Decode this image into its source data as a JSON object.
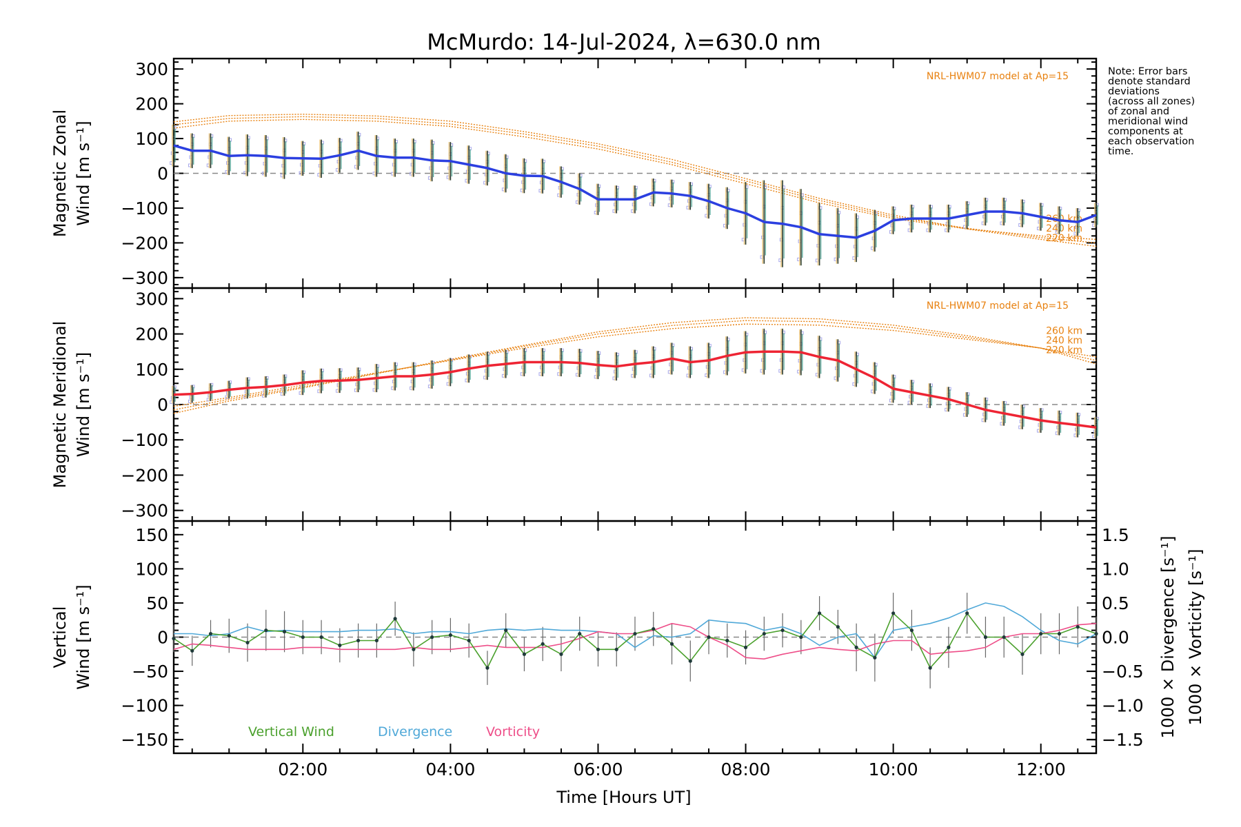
{
  "title": "McMurdo: 14-Jul-2024, λ=630.0 nm",
  "note": [
    "Note: Error bars",
    "denote standard",
    "deviations",
    "(across all zones)",
    "of zonal and",
    "meridional wind",
    "components at",
    "each observation",
    "time."
  ],
  "xlabel": "Time [Hours UT]",
  "xticks": [
    "02:00",
    "04:00",
    "06:00",
    "08:00",
    "10:00",
    "12:00"
  ],
  "colors": {
    "zonal": "#2b3fe0",
    "meridional": "#ee2433",
    "model": "#e8810f",
    "vertical": "#4aa02c",
    "divergence": "#4fa8d8",
    "vorticity": "#ee4d88",
    "zero_line": "#888888",
    "scatter": "#a8a8e8"
  },
  "chart_data": [
    {
      "type": "line",
      "name": "panel-zonal",
      "ylabel_lines": [
        "Magnetic Zonal",
        "Wind [m s⁻¹]"
      ],
      "yticks": [
        "300",
        "200",
        "100",
        "0",
        "−100",
        "−200",
        "−300"
      ],
      "ylim": [
        -330,
        330
      ],
      "xlim": [
        0.25,
        12.75
      ],
      "model_label": "NRL-HWM07 model at Ap=15",
      "model_alt_labels": [
        "260 km",
        "240 km",
        "220 km"
      ],
      "series": [
        {
          "name": "zonal",
          "x": [
            0.25,
            0.5,
            0.75,
            1.0,
            1.25,
            1.5,
            1.75,
            2.0,
            2.25,
            2.5,
            2.75,
            3.0,
            3.25,
            3.5,
            3.75,
            4.0,
            4.25,
            4.5,
            4.75,
            5.0,
            5.25,
            5.5,
            5.75,
            6.0,
            6.25,
            6.5,
            6.75,
            7.0,
            7.25,
            7.5,
            7.75,
            8.0,
            8.25,
            8.5,
            8.75,
            9.0,
            9.25,
            9.5,
            9.75,
            10.0,
            10.25,
            10.5,
            10.75,
            11.0,
            11.25,
            11.5,
            11.75,
            12.0,
            12.25,
            12.5,
            12.75
          ],
          "y": [
            80,
            65,
            65,
            50,
            52,
            50,
            44,
            43,
            42,
            52,
            65,
            50,
            45,
            45,
            37,
            35,
            25,
            15,
            0,
            -7,
            -8,
            -25,
            -45,
            -75,
            -75,
            -75,
            -55,
            -58,
            -65,
            -80,
            -100,
            -115,
            -140,
            -145,
            -155,
            -175,
            -180,
            -185,
            -165,
            -135,
            -130,
            -130,
            -130,
            -120,
            -110,
            -110,
            -115,
            -125,
            -135,
            -140,
            -120
          ],
          "err": [
            60,
            50,
            50,
            55,
            60,
            60,
            60,
            50,
            55,
            50,
            55,
            60,
            55,
            55,
            60,
            55,
            55,
            50,
            55,
            50,
            50,
            45,
            45,
            45,
            40,
            40,
            40,
            40,
            40,
            50,
            60,
            90,
            120,
            125,
            110,
            90,
            80,
            70,
            60,
            40,
            40,
            40,
            40,
            40,
            40,
            40,
            40,
            40,
            40,
            40,
            35
          ]
        }
      ],
      "model": [
        {
          "name": "260 km",
          "x": [
            0.25,
            1,
            2,
            3,
            4,
            5,
            6,
            7,
            8,
            9,
            10,
            11,
            12,
            12.75
          ],
          "y": [
            130,
            150,
            155,
            150,
            135,
            105,
            70,
            25,
            -30,
            -85,
            -130,
            -160,
            -180,
            -190
          ]
        },
        {
          "name": "240 km",
          "x": [
            0.25,
            1,
            2,
            3,
            4,
            5,
            6,
            7,
            8,
            9,
            10,
            11,
            12,
            12.75
          ],
          "y": [
            140,
            158,
            163,
            158,
            142,
            113,
            78,
            32,
            -22,
            -78,
            -125,
            -158,
            -185,
            -200
          ]
        },
        {
          "name": "220 km",
          "x": [
            0.25,
            1,
            2,
            3,
            4,
            5,
            6,
            7,
            8,
            9,
            10,
            11,
            12,
            12.75
          ],
          "y": [
            148,
            166,
            170,
            165,
            150,
            120,
            85,
            40,
            -15,
            -72,
            -120,
            -160,
            -190,
            -210
          ]
        }
      ]
    },
    {
      "type": "line",
      "name": "panel-meridional",
      "ylabel_lines": [
        "Magnetic Meridional",
        "Wind [m s⁻¹]"
      ],
      "yticks": [
        "300",
        "200",
        "100",
        "0",
        "−100",
        "−200",
        "−300"
      ],
      "ylim": [
        -330,
        330
      ],
      "xlim": [
        0.25,
        12.75
      ],
      "model_label": "NRL-HWM07 model at Ap=15",
      "model_alt_labels": [
        "260 km",
        "240 km",
        "220 km"
      ],
      "series": [
        {
          "name": "meridional",
          "x": [
            0.25,
            0.5,
            0.75,
            1.0,
            1.25,
            1.5,
            1.75,
            2.0,
            2.25,
            2.5,
            2.75,
            3.0,
            3.25,
            3.5,
            3.75,
            4.0,
            4.25,
            4.5,
            4.75,
            5.0,
            5.25,
            5.5,
            5.75,
            6.0,
            6.25,
            6.5,
            6.75,
            7.0,
            7.25,
            7.5,
            7.75,
            8.0,
            8.25,
            8.5,
            8.75,
            9.0,
            9.25,
            9.5,
            9.75,
            10.0,
            10.25,
            10.5,
            10.75,
            11.0,
            11.25,
            11.5,
            11.75,
            12.0,
            12.25,
            12.5,
            12.75
          ],
          "y": [
            28,
            30,
            35,
            42,
            47,
            50,
            55,
            62,
            67,
            68,
            70,
            75,
            80,
            80,
            85,
            92,
            102,
            110,
            115,
            120,
            120,
            120,
            118,
            112,
            108,
            115,
            120,
            130,
            120,
            125,
            138,
            148,
            150,
            150,
            148,
            135,
            125,
            100,
            75,
            45,
            35,
            25,
            15,
            0,
            -15,
            -25,
            -35,
            -45,
            -52,
            -58,
            -65
          ],
          "err": [
            25,
            25,
            25,
            25,
            30,
            30,
            30,
            35,
            35,
            35,
            35,
            40,
            40,
            40,
            40,
            40,
            40,
            40,
            40,
            40,
            40,
            40,
            40,
            40,
            40,
            40,
            45,
            45,
            45,
            50,
            55,
            60,
            65,
            65,
            65,
            60,
            60,
            50,
            45,
            40,
            35,
            35,
            35,
            35,
            35,
            35,
            35,
            35,
            35,
            35,
            30
          ]
        }
      ],
      "model": [
        {
          "name": "260 km",
          "x": [
            0.25,
            1,
            2,
            3,
            4,
            5,
            6,
            7,
            8,
            9,
            10,
            11,
            12,
            12.75
          ],
          "y": [
            -5,
            20,
            55,
            90,
            125,
            160,
            192,
            215,
            228,
            225,
            210,
            185,
            160,
            135
          ]
        },
        {
          "name": "240 km",
          "x": [
            0.25,
            1,
            2,
            3,
            4,
            5,
            6,
            7,
            8,
            9,
            10,
            11,
            12,
            12.75
          ],
          "y": [
            -15,
            15,
            50,
            88,
            126,
            165,
            200,
            224,
            238,
            235,
            218,
            190,
            160,
            125
          ]
        },
        {
          "name": "220 km",
          "x": [
            0.25,
            1,
            2,
            3,
            4,
            5,
            6,
            7,
            8,
            9,
            10,
            11,
            12,
            12.75
          ],
          "y": [
            -25,
            10,
            47,
            88,
            128,
            168,
            206,
            232,
            246,
            243,
            225,
            195,
            160,
            115
          ]
        }
      ]
    },
    {
      "type": "line",
      "name": "panel-vertical",
      "ylabel_lines": [
        "Vertical",
        "Wind [m s⁻¹]"
      ],
      "yticks": [
        "150",
        "100",
        "50",
        "0",
        "−50",
        "−100",
        "−150"
      ],
      "ylim": [
        -170,
        170
      ],
      "y2label_div": "1000 × Divergence [s⁻¹]",
      "y2label_vort": "1000 × Vorticity [s⁻¹]",
      "y2ticks": [
        "1.5",
        "1.0",
        "0.5",
        "0.0",
        "−0.5",
        "−1.0",
        "−1.5"
      ],
      "y2lim": [
        -1.7,
        1.7
      ],
      "xlim": [
        0.25,
        12.75
      ],
      "legend": [
        "Vertical Wind",
        "Divergence",
        "Vorticity"
      ],
      "series": [
        {
          "name": "Vertical Wind",
          "x": [
            0.25,
            0.5,
            0.75,
            1.0,
            1.25,
            1.5,
            1.75,
            2.0,
            2.25,
            2.5,
            2.75,
            3.0,
            3.25,
            3.5,
            3.75,
            4.0,
            4.25,
            4.5,
            4.75,
            5.0,
            5.25,
            5.5,
            5.75,
            6.0,
            6.25,
            6.5,
            6.75,
            7.0,
            7.25,
            7.5,
            7.75,
            8.0,
            8.25,
            8.5,
            8.75,
            9.0,
            9.25,
            9.5,
            9.75,
            10.0,
            10.25,
            10.5,
            10.75,
            11.0,
            11.25,
            11.5,
            11.75,
            12.0,
            12.25,
            12.5,
            12.75
          ],
          "y": [
            -2,
            -20,
            5,
            2,
            -8,
            10,
            8,
            0,
            0,
            -12,
            -5,
            -5,
            27,
            -18,
            0,
            3,
            -5,
            -45,
            10,
            -25,
            -10,
            -25,
            5,
            -18,
            -18,
            5,
            12,
            -10,
            -35,
            0,
            -5,
            -15,
            5,
            10,
            0,
            35,
            15,
            -15,
            -30,
            35,
            10,
            -45,
            -15,
            35,
            0,
            0,
            -25,
            5,
            5,
            15,
            5
          ],
          "err": [
            20,
            22,
            20,
            25,
            28,
            30,
            30,
            25,
            25,
            25,
            25,
            25,
            25,
            25,
            25,
            25,
            25,
            25,
            25,
            25,
            25,
            25,
            25,
            25,
            25,
            25,
            25,
            30,
            30,
            25,
            25,
            25,
            25,
            25,
            25,
            25,
            25,
            35,
            35,
            30,
            30,
            30,
            30,
            30,
            30,
            30,
            30,
            30,
            30,
            30,
            25
          ]
        },
        {
          "name": "Divergence",
          "x": [
            0.25,
            0.5,
            0.75,
            1.0,
            1.25,
            1.5,
            1.75,
            2.0,
            2.25,
            2.5,
            2.75,
            3.0,
            3.25,
            3.5,
            3.75,
            4.0,
            4.25,
            4.5,
            4.75,
            5.0,
            5.25,
            5.5,
            5.75,
            6.0,
            6.25,
            6.5,
            6.75,
            7.0,
            7.25,
            7.5,
            7.75,
            8.0,
            8.25,
            8.5,
            8.75,
            9.0,
            9.25,
            9.5,
            9.75,
            10.0,
            10.25,
            10.5,
            10.75,
            11.0,
            11.25,
            11.5,
            11.75,
            12.0,
            12.25,
            12.5,
            12.75
          ],
          "y": [
            0.05,
            0.05,
            0.02,
            0.05,
            0.15,
            0.08,
            0.1,
            0.08,
            0.08,
            0.08,
            0.1,
            0.1,
            0.12,
            0.05,
            0.08,
            0.08,
            0.05,
            0.1,
            0.12,
            0.1,
            0.12,
            0.1,
            0.1,
            0.08,
            0.05,
            -0.15,
            0.02,
            0.0,
            0.05,
            0.25,
            0.22,
            0.2,
            0.1,
            0.15,
            0.05,
            -0.12,
            0.0,
            0.05,
            -0.3,
            0.1,
            0.15,
            0.2,
            0.28,
            0.4,
            0.5,
            0.45,
            0.3,
            0.1,
            -0.05,
            -0.1,
            0.05
          ]
        },
        {
          "name": "Vorticity",
          "x": [
            0.25,
            0.5,
            0.75,
            1.0,
            1.25,
            1.5,
            1.75,
            2.0,
            2.25,
            2.5,
            2.75,
            3.0,
            3.25,
            3.5,
            3.75,
            4.0,
            4.25,
            4.5,
            4.75,
            5.0,
            5.25,
            5.5,
            5.75,
            6.0,
            6.25,
            6.5,
            6.75,
            7.0,
            7.25,
            7.5,
            7.75,
            8.0,
            8.25,
            8.5,
            8.75,
            9.0,
            9.25,
            9.5,
            9.75,
            10.0,
            10.25,
            10.5,
            10.75,
            11.0,
            11.25,
            11.5,
            11.75,
            12.0,
            12.25,
            12.5,
            12.75
          ],
          "y": [
            -0.18,
            -0.1,
            -0.12,
            -0.15,
            -0.18,
            -0.18,
            -0.18,
            -0.15,
            -0.15,
            -0.18,
            -0.18,
            -0.18,
            -0.18,
            -0.15,
            -0.18,
            -0.18,
            -0.15,
            -0.12,
            -0.15,
            -0.15,
            -0.15,
            -0.1,
            -0.02,
            0.08,
            0.05,
            0.05,
            0.1,
            0.2,
            0.15,
            0.0,
            -0.12,
            -0.3,
            -0.32,
            -0.25,
            -0.2,
            -0.15,
            -0.18,
            -0.2,
            -0.1,
            -0.05,
            -0.05,
            -0.25,
            -0.22,
            -0.2,
            -0.15,
            0.0,
            0.05,
            0.05,
            0.1,
            0.18,
            0.2
          ]
        }
      ]
    }
  ]
}
